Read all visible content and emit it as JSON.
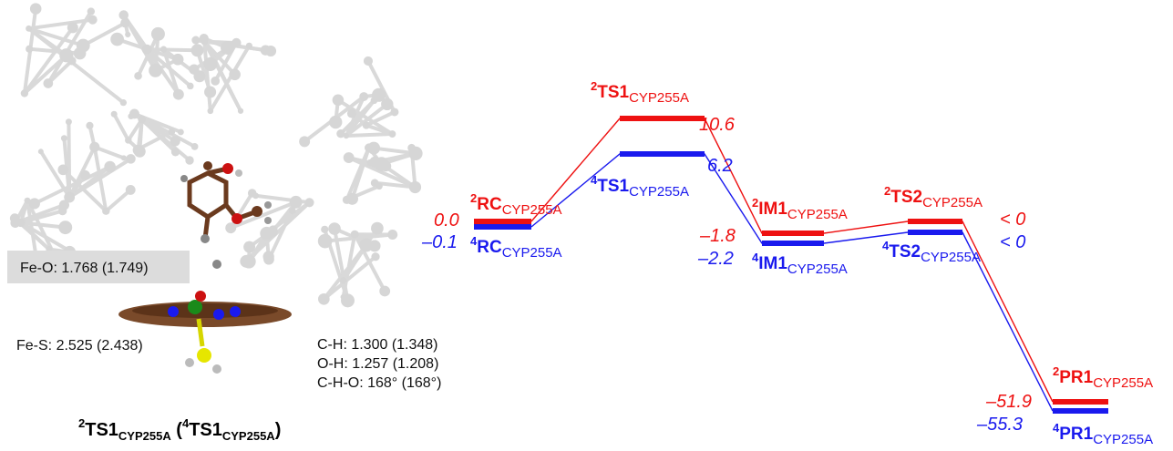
{
  "structure": {
    "geometry_box": "Fe-O: 1.768 (1.749)",
    "fe_s": "Fe-S: 2.525 (2.438)",
    "ch": "C-H: 1.300 (1.348)",
    "oh": "O-H: 1.257 (1.208)",
    "cho": "C-H-O: 168° (168°)",
    "caption": {
      "sup1": "2",
      "main1": "TS1",
      "sub1": "CYP255A",
      "open": " (",
      "sup2": "4",
      "main2": "TS1",
      "sub2": "CYP255A",
      "close": ")"
    }
  },
  "colors": {
    "doublet": "#ee1111",
    "quartet": "#1a1aee",
    "atom": "#d2d2d2"
  },
  "diagram": {
    "subscript": "CYP255A",
    "doublet": {
      "prefix": "2",
      "states": [
        {
          "name": "RC",
          "value": "0.0"
        },
        {
          "name": "TS1",
          "value": "10.6"
        },
        {
          "name": "IM1",
          "value": "–1.8"
        },
        {
          "name": "TS2",
          "value": "< 0"
        },
        {
          "name": "PR1",
          "value": "–51.9"
        }
      ]
    },
    "quartet": {
      "prefix": "4",
      "states": [
        {
          "name": "RC",
          "value": "–0.1"
        },
        {
          "name": "TS1",
          "value": "6.2"
        },
        {
          "name": "IM1",
          "value": "–2.2"
        },
        {
          "name": "TS2",
          "value": "< 0"
        },
        {
          "name": "PR1",
          "value": "–55.3"
        }
      ]
    }
  }
}
